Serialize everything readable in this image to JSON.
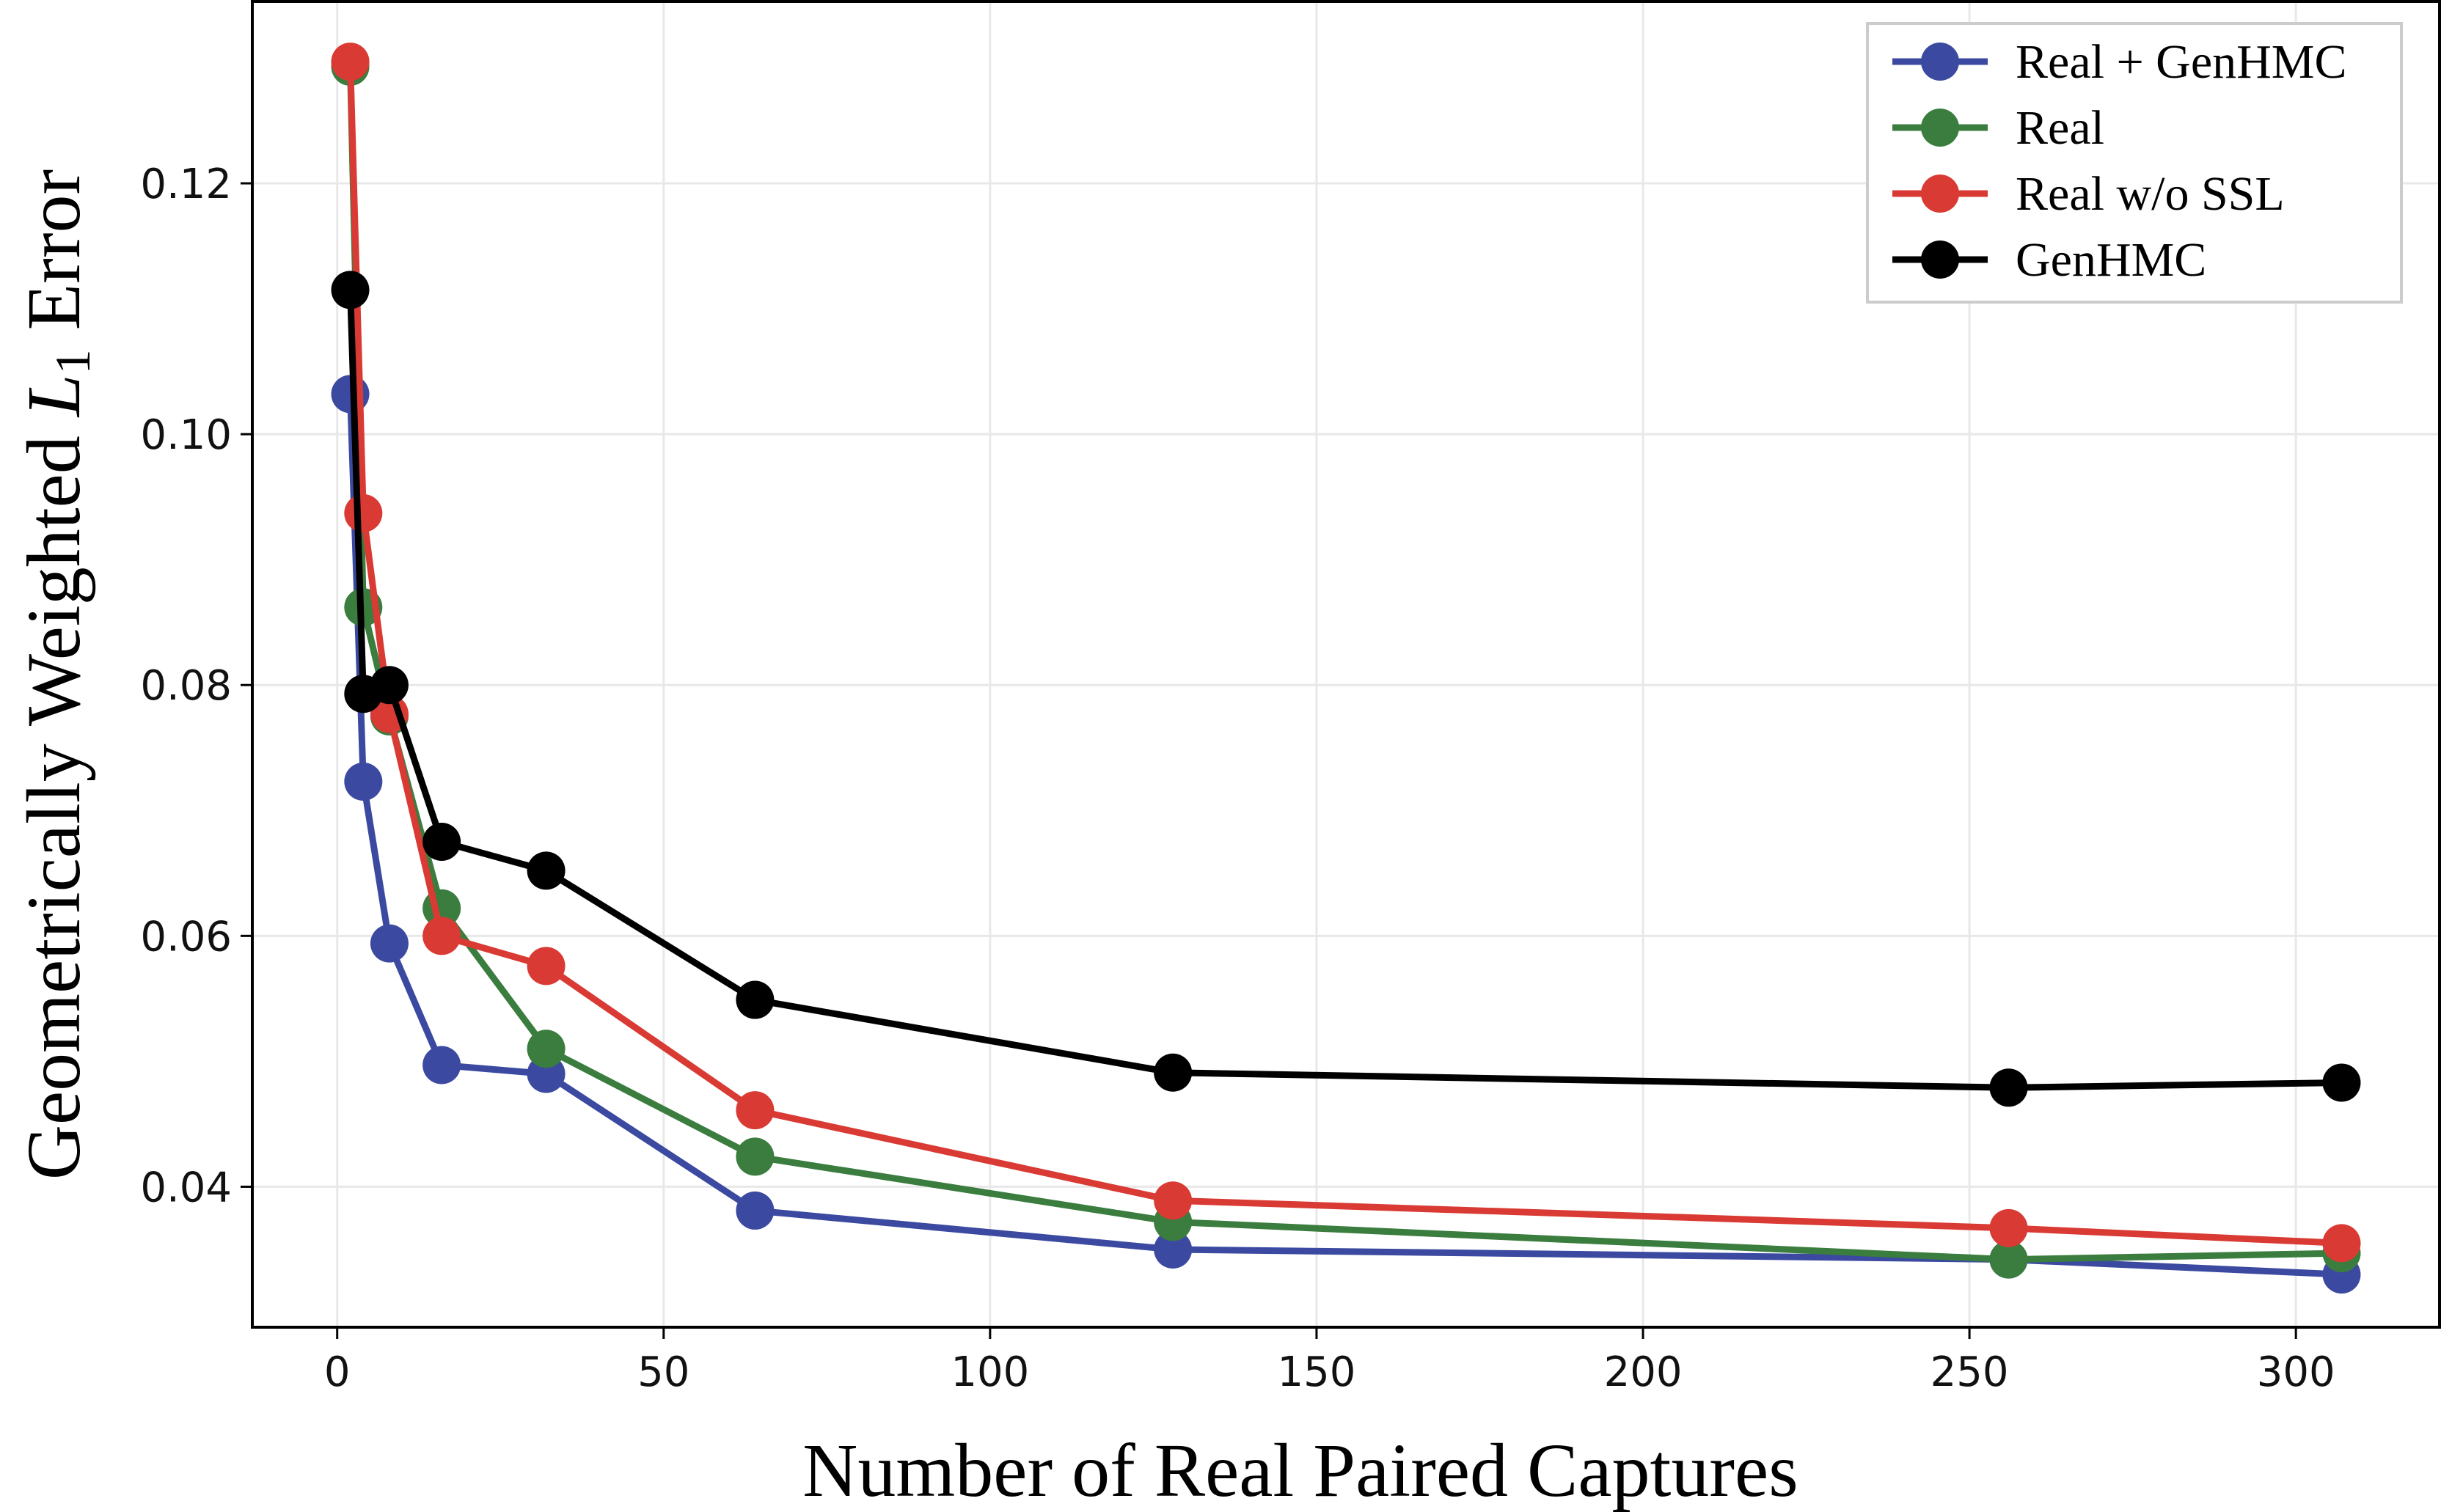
{
  "chart_data": {
    "type": "line",
    "xlabel": "Number of Real Paired Captures",
    "ylabel": {
      "prefix": "Geometrically Weighted ",
      "var": "L",
      "sub": "1",
      "suffix": " Error"
    },
    "xlim": [
      -13,
      322
    ],
    "ylim": [
      0.0288,
      0.1345
    ],
    "xticks": [
      0,
      50,
      100,
      150,
      200,
      250,
      300
    ],
    "yticks": [
      0.04,
      0.06,
      0.08,
      0.1,
      0.12
    ],
    "ytick_labels": [
      "0.04",
      "0.06",
      "0.08",
      "0.10",
      "0.12"
    ],
    "xtick_labels": [
      "0",
      "50",
      "100",
      "150",
      "200",
      "250",
      "300"
    ],
    "grid": true,
    "legend_position": "top-right",
    "series": [
      {
        "name": "Real + GenHMC",
        "color": "#3b4aa0",
        "x": [
          2,
          4,
          8,
          16,
          32,
          64,
          128,
          256,
          307
        ],
        "y": [
          0.1032,
          0.0723,
          0.0594,
          0.0497,
          0.049,
          0.0381,
          0.035,
          0.0342,
          0.033
        ]
      },
      {
        "name": "Real",
        "color": "#3a7d3e",
        "x": [
          2,
          4,
          8,
          16,
          32,
          64,
          128,
          256,
          307
        ],
        "y": [
          0.1293,
          0.0862,
          0.0775,
          0.0622,
          0.051,
          0.0424,
          0.0372,
          0.0342,
          0.0347
        ]
      },
      {
        "name": "Real w/o SSL",
        "color": "#d93a33",
        "x": [
          2,
          4,
          8,
          16,
          32,
          64,
          128,
          256,
          307
        ],
        "y": [
          0.1297,
          0.0937,
          0.0777,
          0.06,
          0.0576,
          0.0461,
          0.0389,
          0.0367,
          0.0355
        ]
      },
      {
        "name": "GenHMC",
        "color": "#000000",
        "x": [
          2,
          4,
          8,
          16,
          32,
          64,
          128,
          256,
          307
        ],
        "y": [
          0.1115,
          0.0793,
          0.08,
          0.0675,
          0.0652,
          0.0549,
          0.0491,
          0.0479,
          0.0483
        ]
      }
    ]
  }
}
